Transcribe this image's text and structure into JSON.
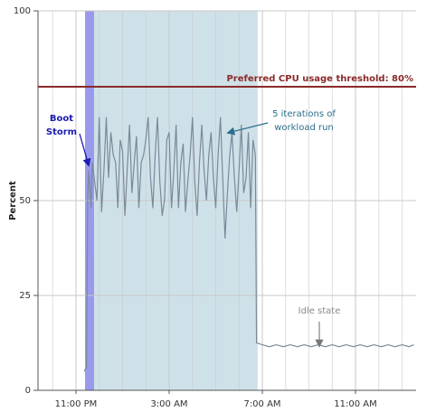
{
  "chart_data": {
    "type": "line",
    "y_label": "Percent",
    "x": [
      23.35,
      23.45,
      23.5,
      23.55,
      23.65,
      23.7,
      23.8,
      23.9,
      24.0,
      24.1,
      24.2,
      24.3,
      24.4,
      24.5,
      24.6,
      24.7,
      24.8,
      24.9,
      25.0,
      25.1,
      25.2,
      25.3,
      25.4,
      25.5,
      25.6,
      25.7,
      25.8,
      25.9,
      26.0,
      26.1,
      26.2,
      26.3,
      26.4,
      26.5,
      26.6,
      26.7,
      26.8,
      26.9,
      27.0,
      27.1,
      27.2,
      27.3,
      27.4,
      27.5,
      27.6,
      27.7,
      27.8,
      27.9,
      28.0,
      28.1,
      28.2,
      28.3,
      28.4,
      28.5,
      28.6,
      28.7,
      28.8,
      28.9,
      29.0,
      29.1,
      29.2,
      29.3,
      29.4,
      29.5,
      29.6,
      29.7,
      29.8,
      29.9,
      30.0,
      30.1,
      30.2,
      30.3,
      30.4,
      30.5,
      30.6,
      30.7,
      30.75,
      31.0,
      31.3,
      31.6,
      31.9,
      32.2,
      32.5,
      32.8,
      33.1,
      33.4,
      33.7,
      34.0,
      34.3,
      34.6,
      34.9,
      35.2,
      35.5,
      35.8,
      36.1,
      36.4,
      36.7,
      37.0,
      37.3,
      37.5
    ],
    "values": [
      5,
      6,
      50,
      58,
      48,
      60,
      55,
      50,
      72,
      47,
      58,
      72,
      56,
      68,
      62,
      60,
      48,
      66,
      63,
      46,
      58,
      70,
      52,
      60,
      67,
      48,
      60,
      62,
      66,
      72,
      56,
      48,
      62,
      72,
      55,
      46,
      50,
      66,
      68,
      48,
      58,
      70,
      48,
      60,
      65,
      47,
      55,
      62,
      72,
      55,
      46,
      60,
      70,
      58,
      50,
      62,
      68,
      56,
      48,
      62,
      72,
      56,
      40,
      52,
      62,
      68,
      56,
      47,
      58,
      70,
      52,
      56,
      68,
      48,
      66,
      62,
      12.5,
      12,
      11.5,
      12,
      11.5,
      12,
      11.5,
      12,
      11.5,
      12,
      11.5,
      12,
      11.5,
      12,
      11.5,
      12,
      11.5,
      12,
      11.5,
      12,
      11.5,
      12,
      11.5,
      12
    ],
    "color": "#7a8a99",
    "xlim": [
      21.37,
      37.6
    ],
    "xticks": [
      {
        "value": 23,
        "label": "11:00 PM"
      },
      {
        "value": 27,
        "label": "3:00 AM"
      },
      {
        "value": 31,
        "label": "7:00 AM"
      },
      {
        "value": 35,
        "label": "11:00 AM"
      }
    ],
    "ylim": [
      0,
      100
    ],
    "yticks": [
      0,
      25,
      50,
      100
    ],
    "grid": true,
    "bands": [
      {
        "start": 23.39,
        "end": 23.78,
        "color": "#9a9aec"
      },
      {
        "start": 23.78,
        "end": 30.8,
        "color": "#cfe1e8"
      }
    ],
    "threshold": {
      "value": 80,
      "label": "Preferred CPU usage threshold: 80%",
      "color": "#8b2a2a"
    },
    "annotations": [
      {
        "lines": [
          "Boot",
          "Storm"
        ],
        "color": "#1c1cb0"
      },
      {
        "lines": [
          "5 iterations of",
          "workload run"
        ],
        "color": "#2b6f8c"
      },
      {
        "lines": [
          "Idle state"
        ],
        "color": "#8a8a8a"
      }
    ]
  }
}
